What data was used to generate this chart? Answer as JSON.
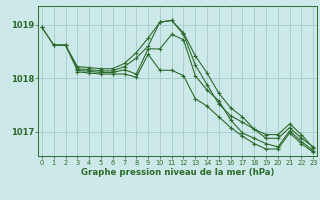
{
  "title": "Graphe pression niveau de la mer (hPa)",
  "bg_color": "#cce8e8",
  "grid_color": "#a8d0d0",
  "line_color": "#2d6b2d",
  "series": [
    {
      "x": [
        0,
        1,
        2,
        3,
        4,
        5,
        6,
        7,
        8,
        9,
        10,
        11,
        12,
        13,
        14,
        15,
        16,
        17,
        18,
        19,
        20,
        21,
        22,
        23
      ],
      "y": [
        1018.95,
        1018.62,
        1018.62,
        1018.22,
        1018.2,
        1018.18,
        1018.18,
        1018.28,
        1018.48,
        1018.75,
        1019.05,
        1019.08,
        1018.85,
        1018.42,
        1018.1,
        1017.72,
        1017.45,
        1017.28,
        1017.05,
        1016.88,
        1016.88,
        1017.08,
        1016.88,
        1016.72
      ]
    },
    {
      "x": [
        0,
        1,
        2,
        3,
        4,
        5,
        6,
        7,
        8,
        9,
        10,
        11,
        12,
        13,
        14,
        15,
        16,
        17,
        18,
        19,
        20,
        21,
        22,
        23
      ],
      "y": [
        1018.95,
        1018.62,
        1018.62,
        1018.18,
        1018.16,
        1018.14,
        1018.14,
        1018.22,
        1018.38,
        1018.6,
        1019.05,
        1019.08,
        1018.82,
        1018.25,
        1017.88,
        1017.52,
        1017.3,
        1017.18,
        1017.05,
        1016.95,
        1016.95,
        1017.15,
        1016.95,
        1016.7
      ]
    },
    {
      "x": [
        1,
        2,
        3,
        4,
        5,
        6,
        7,
        8,
        9,
        10,
        11,
        12,
        13,
        14,
        15,
        16,
        17,
        18,
        19,
        20,
        21,
        22,
        23
      ],
      "y": [
        1018.62,
        1018.62,
        1018.15,
        1018.13,
        1018.11,
        1018.11,
        1018.16,
        1018.08,
        1018.55,
        1018.55,
        1018.82,
        1018.72,
        1018.05,
        1017.78,
        1017.58,
        1017.22,
        1016.98,
        1016.88,
        1016.78,
        1016.72,
        1017.02,
        1016.82,
        1016.65
      ]
    },
    {
      "x": [
        3,
        4,
        5,
        6,
        7,
        8,
        9,
        10,
        11,
        12,
        13,
        14,
        15,
        16,
        17,
        18,
        19,
        20,
        21,
        22,
        23
      ],
      "y": [
        1018.12,
        1018.1,
        1018.08,
        1018.08,
        1018.08,
        1018.02,
        1018.45,
        1018.15,
        1018.15,
        1018.05,
        1017.62,
        1017.48,
        1017.28,
        1017.08,
        1016.92,
        1016.78,
        1016.68,
        1016.68,
        1016.98,
        1016.78,
        1016.62
      ]
    }
  ],
  "ylim": [
    1016.55,
    1019.35
  ],
  "yticks": [
    1017,
    1018,
    1019
  ],
  "xlim": [
    -0.3,
    23.3
  ],
  "xticks": [
    0,
    1,
    2,
    3,
    4,
    5,
    6,
    7,
    8,
    9,
    10,
    11,
    12,
    13,
    14,
    15,
    16,
    17,
    18,
    19,
    20,
    21,
    22,
    23
  ]
}
